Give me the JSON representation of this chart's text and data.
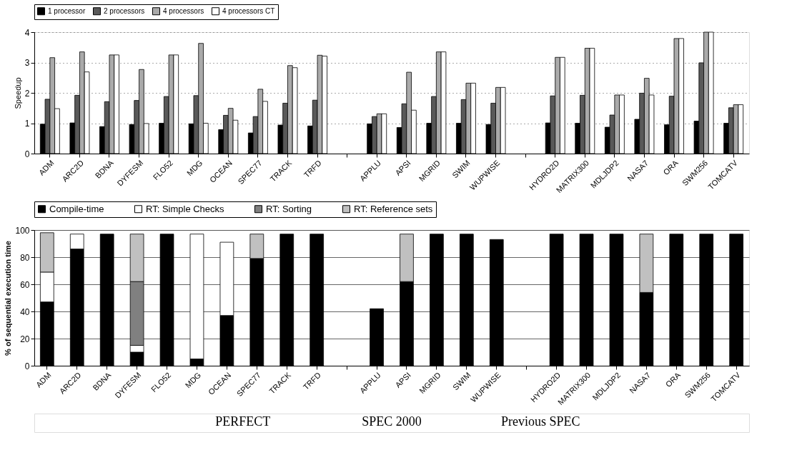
{
  "chart_data": [
    {
      "type": "bar",
      "ylabel": "Speedup",
      "categories": [
        "ADM",
        "ARC2D",
        "BDNA",
        "DYFESM",
        "FLO52",
        "MDG",
        "OCEAN",
        "SPEC77",
        "TRACK",
        "TRFD",
        null,
        "APPLU",
        "APSI",
        "MGRID",
        "SWIM",
        "WUPWISE",
        null,
        "HYDRO2D",
        "MATRIX300",
        "MDLJDP2",
        "NASA7",
        "ORA",
        "SWM256",
        "TOMCATV"
      ],
      "series": [
        {
          "name": "1 processor",
          "color": "#000000",
          "values": [
            0.97,
            1.01,
            0.89,
            0.96,
            1.0,
            0.98,
            0.79,
            0.68,
            0.94,
            0.91,
            null,
            0.98,
            0.86,
            1.0,
            1.0,
            0.96,
            null,
            1.01,
            1.0,
            0.87,
            1.13,
            0.95,
            1.07,
            1.0
          ]
        },
        {
          "name": "2 processors",
          "color": "#595959",
          "values": [
            1.79,
            1.92,
            1.71,
            1.75,
            1.88,
            1.91,
            1.26,
            1.22,
            1.66,
            1.76,
            null,
            1.22,
            1.64,
            1.88,
            1.78,
            1.66,
            null,
            1.9,
            1.92,
            1.27,
            1.99,
            1.89,
            2.99,
            1.51
          ]
        },
        {
          "name": "4 processors",
          "color": "#aaaaaa",
          "values": [
            3.16,
            3.35,
            3.25,
            2.77,
            3.25,
            3.63,
            1.49,
            2.12,
            2.9,
            3.24,
            null,
            1.31,
            2.68,
            3.35,
            2.32,
            2.18,
            null,
            3.17,
            3.47,
            1.93,
            2.48,
            3.79,
            4.0,
            1.61
          ]
        },
        {
          "name": "4 processors CT",
          "color": "#ffffff",
          "values": [
            1.48,
            2.69,
            3.25,
            0.99,
            3.25,
            1.0,
            1.1,
            1.72,
            2.83,
            3.21,
            null,
            1.31,
            1.43,
            3.35,
            2.32,
            2.18,
            null,
            3.17,
            3.47,
            1.93,
            1.93,
            3.79,
            4.0,
            1.61
          ]
        }
      ],
      "ylim": [
        0,
        4
      ],
      "yticks": [
        0,
        1,
        2,
        3,
        4
      ],
      "grid": "y",
      "legend": "top"
    },
    {
      "type": "bar",
      "ylabel": "% of sequential execution time",
      "stacked": true,
      "categories": [
        "ADM",
        "ARC2D",
        "BDNA",
        "DYFESM",
        "FLO52",
        "MDG",
        "OCEAN",
        "SPEC77",
        "TRACK",
        "TRFD",
        null,
        "APPLU",
        "APSI",
        "MGRID",
        "SWIM",
        "WUPWISE",
        null,
        "HYDRO2D",
        "MATRIX300",
        "MDLJDP2",
        "NASA7",
        "ORA",
        "SWM256",
        "TOMCATV"
      ],
      "series": [
        {
          "name": "Compile-time",
          "color": "#000000",
          "values": [
            47,
            86,
            97,
            10,
            97,
            5,
            37,
            79,
            97,
            97,
            null,
            42,
            62,
            97,
            97,
            93,
            null,
            97,
            97,
            97,
            54,
            97,
            97,
            97
          ]
        },
        {
          "name": "RT: Simple Checks",
          "color": "#ffffff",
          "values": [
            22,
            11,
            null,
            5,
            null,
            92,
            54,
            null,
            null,
            null,
            null,
            null,
            null,
            null,
            null,
            null,
            null,
            null,
            null,
            null,
            null,
            null,
            null,
            null
          ]
        },
        {
          "name": "RT: Sorting",
          "color": "#808080",
          "values": [
            null,
            null,
            null,
            47,
            null,
            null,
            null,
            null,
            null,
            null,
            null,
            null,
            null,
            null,
            null,
            null,
            null,
            null,
            null,
            null,
            null,
            null,
            null,
            null
          ]
        },
        {
          "name": "RT: Reference sets",
          "color": "#c0c0c0",
          "values": [
            29,
            null,
            null,
            35,
            null,
            null,
            null,
            18,
            null,
            null,
            null,
            null,
            35,
            null,
            null,
            null,
            null,
            null,
            null,
            null,
            43,
            null,
            null,
            null
          ]
        }
      ],
      "ylim": [
        0,
        100
      ],
      "yticks": [
        0,
        20,
        40,
        60,
        80,
        100
      ],
      "grid": "y",
      "legend": "top",
      "annotations": [
        "PERFECT",
        "SPEC 2000",
        "Previous SPEC"
      ]
    }
  ]
}
